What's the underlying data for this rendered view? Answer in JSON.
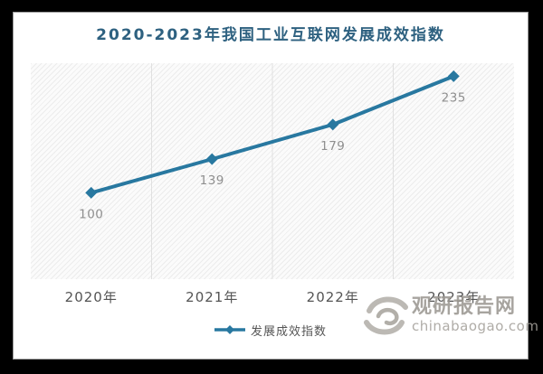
{
  "title": "2020-2023年我国工业互联网发展成效指数",
  "chart_data": {
    "type": "line",
    "categories": [
      "2020年",
      "2021年",
      "2022年",
      "2023年"
    ],
    "series": [
      {
        "name": "发展成效指数",
        "values": [
          100,
          139,
          179,
          235
        ]
      }
    ],
    "point_labels": [
      "100",
      "139",
      "179",
      "235"
    ],
    "title": "2020-2023年我国工业互联网发展成效指数",
    "xlabel": "",
    "ylabel": "",
    "ylim": [
      0,
      250
    ],
    "grid": "vertical-internal-only",
    "legend_position": "bottom-center",
    "marker": "diamond"
  },
  "legend": {
    "label": "发展成效指数"
  },
  "watermark": {
    "logo": "swirl-logo",
    "name": "观研报告网",
    "url_text": "chinabaogao.com"
  },
  "colors": {
    "frame": "#000000",
    "panel_bg": "#ffffff",
    "title": "#2e6180",
    "line": "#2878a0",
    "value_label": "#8f8f8f",
    "axis_label": "#545454",
    "grid": "#e0e0e0",
    "watermark": "#9c9892",
    "hatch": "#ececec"
  }
}
